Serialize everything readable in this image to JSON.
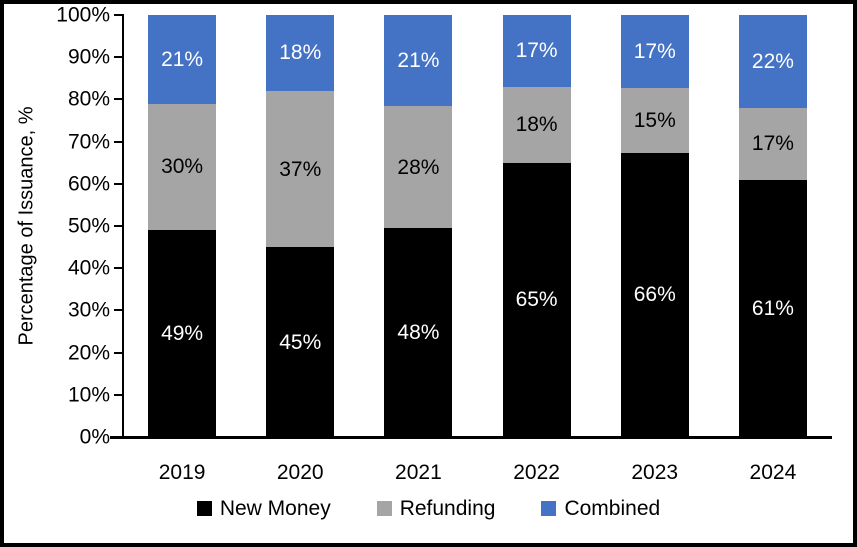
{
  "frame": {
    "background": "#ffffff",
    "border_color": "#000000"
  },
  "chart_data": {
    "type": "bar",
    "stacked": true,
    "title": "",
    "xlabel": "",
    "ylabel": "Percentage of Issuance, %",
    "ylim": [
      0,
      100
    ],
    "grid": false,
    "legend_position": "bottom",
    "data_label_suffix": "%",
    "y_tick_labels": [
      "0%",
      "10%",
      "20%",
      "30%",
      "40%",
      "50%",
      "60%",
      "70%",
      "80%",
      "90%",
      "100%"
    ],
    "categories": [
      "2019",
      "2020",
      "2021",
      "2022",
      "2023",
      "2024"
    ],
    "series": [
      {
        "name": "New Money",
        "color": "#000000",
        "label_color": "#ffffff",
        "values": [
          49,
          45,
          48,
          65,
          66,
          61
        ]
      },
      {
        "name": "Refunding",
        "color": "#A5A5A5",
        "label_color": "#000000",
        "values": [
          30,
          37,
          28,
          18,
          15,
          17
        ]
      },
      {
        "name": "Combined",
        "color": "#4472C4",
        "label_color": "#ffffff",
        "values": [
          21,
          18,
          21,
          17,
          17,
          22
        ]
      }
    ]
  }
}
